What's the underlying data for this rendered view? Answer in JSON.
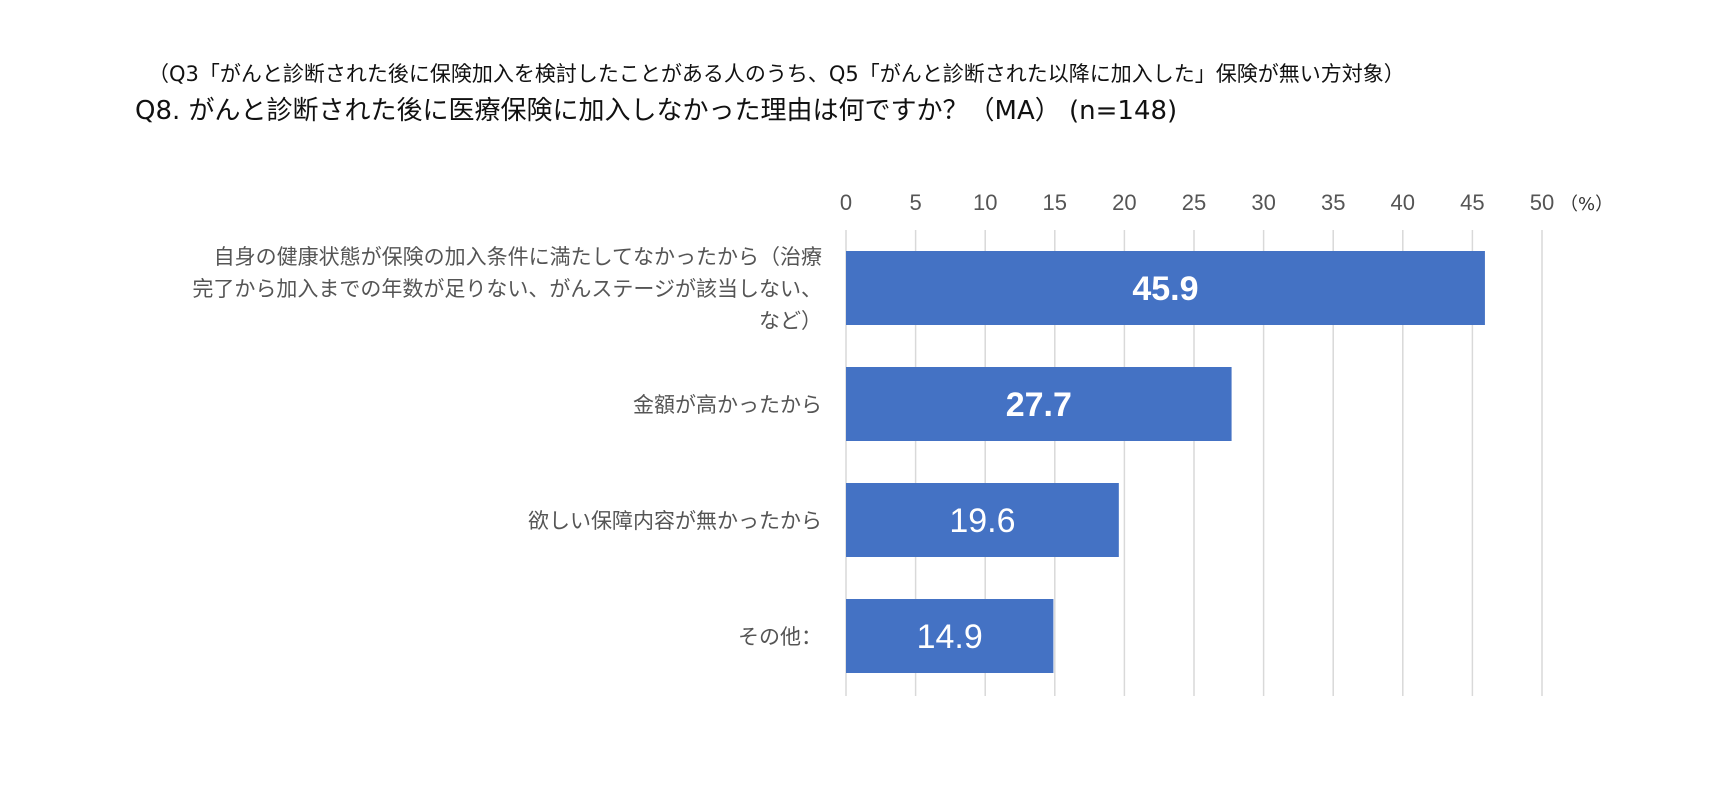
{
  "header": {
    "subtitle": "（Q3「がんと診断された後に保険加入を検討したことがある人のうち、Q5「がんと診断された以降に加入した」保険が無い方対象）",
    "title": "Q8. がんと診断された後に医療保険に加入しなかった理由は何ですか？（MA） (n=148)"
  },
  "chart_data": {
    "type": "bar",
    "orientation": "horizontal",
    "categories": [
      [
        "自身の健康状態が保険の加入条件に満たしてなかったから（治療",
        "完了から加入までの年数が足りない、がんステージが該当しない、",
        "など）"
      ],
      [
        "金額が高かったから"
      ],
      [
        "欲しい保障内容が無かったから"
      ],
      [
        "その他："
      ]
    ],
    "values": [
      45.9,
      27.7,
      19.6,
      14.9
    ],
    "value_labels": [
      "45.9",
      "27.7",
      "19.6",
      "14.9"
    ],
    "bold_labels": [
      true,
      true,
      false,
      false
    ],
    "xlim": [
      0,
      50
    ],
    "ticks": [
      0,
      5,
      10,
      15,
      20,
      25,
      30,
      35,
      40,
      45,
      50
    ],
    "tick_labels": [
      "0",
      "5",
      "10",
      "15",
      "20",
      "25",
      "30",
      "35",
      "40",
      "45",
      "50"
    ],
    "unit": "（%）",
    "axis_position": "top",
    "grid": true,
    "bar_color": "#4472C4",
    "grid_color": "#D9D9D9"
  }
}
